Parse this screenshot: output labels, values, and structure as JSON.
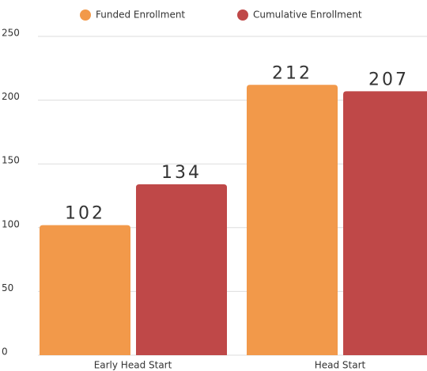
{
  "chart_data": {
    "type": "bar",
    "categories": [
      "Early Head Start",
      "Head Start"
    ],
    "series": [
      {
        "name": "Funded Enrollment",
        "color": "#f2994a",
        "values": [
          102,
          212
        ]
      },
      {
        "name": "Cumulative Enrollment",
        "color": "#bf4848",
        "values": [
          134,
          207
        ]
      }
    ],
    "ylim": [
      0,
      250
    ],
    "yticks": [
      0,
      50,
      100,
      150,
      200,
      250
    ],
    "grid": true,
    "legend": "top"
  }
}
